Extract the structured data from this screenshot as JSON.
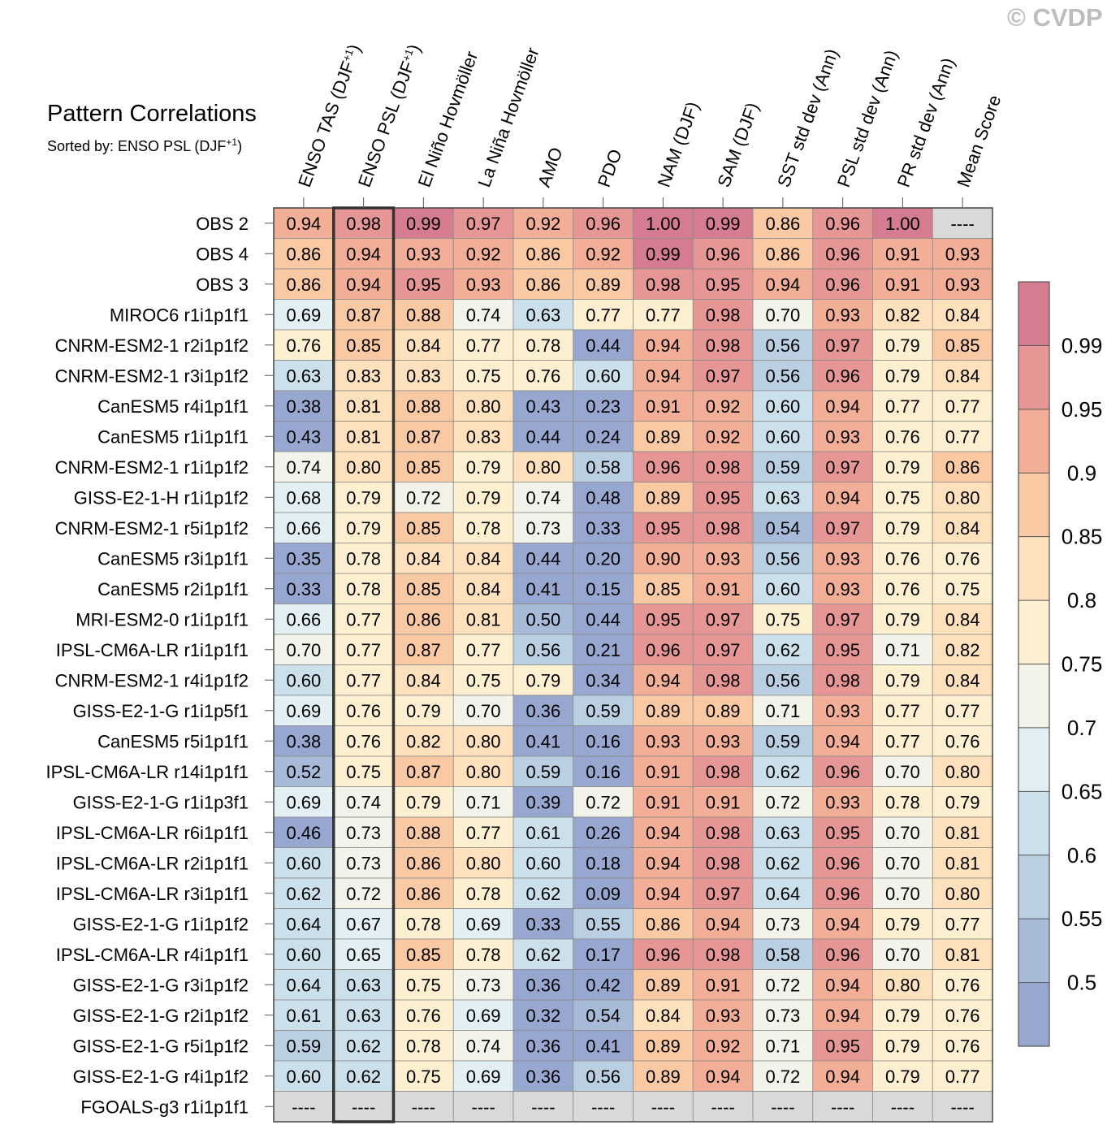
{
  "watermark": "© CVDP",
  "chart_data": {
    "type": "heatmap",
    "title": "Pattern Correlations",
    "subtitle_prefix": "Sorted by: ENSO PSL (DJF",
    "subtitle_sup": "+1",
    "subtitle_suffix": ")",
    "highlighted_column": 1,
    "missing_label": "----",
    "columns": [
      {
        "label": "ENSO TAS (DJF",
        "sup": "+1",
        "suffix": ")"
      },
      {
        "label": "ENSO PSL (DJF",
        "sup": "+1",
        "suffix": ")"
      },
      {
        "label": "El Niño Hovmöller"
      },
      {
        "label": "La Niña Hovmöller"
      },
      {
        "label": "AMO"
      },
      {
        "label": "PDO"
      },
      {
        "label": "NAM (DJF)"
      },
      {
        "label": "SAM (DJF)"
      },
      {
        "label": "SST std dev (Ann)"
      },
      {
        "label": "PSL std dev (Ann)"
      },
      {
        "label": "PR std dev (Ann)"
      },
      {
        "label": "Mean Score"
      }
    ],
    "rows": [
      {
        "name": "OBS 2",
        "values": [
          0.94,
          0.98,
          0.99,
          0.97,
          0.92,
          0.96,
          1.0,
          0.99,
          0.86,
          0.96,
          1.0,
          null
        ]
      },
      {
        "name": "OBS 4",
        "values": [
          0.86,
          0.94,
          0.93,
          0.92,
          0.86,
          0.92,
          0.99,
          0.96,
          0.86,
          0.96,
          0.91,
          0.93
        ]
      },
      {
        "name": "OBS 3",
        "values": [
          0.86,
          0.94,
          0.95,
          0.93,
          0.86,
          0.89,
          0.98,
          0.95,
          0.94,
          0.96,
          0.91,
          0.93
        ]
      },
      {
        "name": "MIROC6 r1i1p1f1",
        "values": [
          0.69,
          0.87,
          0.88,
          0.74,
          0.63,
          0.77,
          0.77,
          0.98,
          0.7,
          0.93,
          0.82,
          0.84
        ]
      },
      {
        "name": "CNRM-ESM2-1 r2i1p1f2",
        "values": [
          0.76,
          0.85,
          0.84,
          0.77,
          0.78,
          0.44,
          0.94,
          0.98,
          0.56,
          0.97,
          0.79,
          0.85
        ]
      },
      {
        "name": "CNRM-ESM2-1 r3i1p1f2",
        "values": [
          0.63,
          0.83,
          0.83,
          0.75,
          0.76,
          0.6,
          0.94,
          0.97,
          0.56,
          0.96,
          0.79,
          0.84
        ]
      },
      {
        "name": "CanESM5 r4i1p1f1",
        "values": [
          0.38,
          0.81,
          0.88,
          0.8,
          0.43,
          0.23,
          0.91,
          0.92,
          0.6,
          0.94,
          0.77,
          0.77
        ]
      },
      {
        "name": "CanESM5 r1i1p1f1",
        "values": [
          0.43,
          0.81,
          0.87,
          0.83,
          0.44,
          0.24,
          0.89,
          0.92,
          0.6,
          0.93,
          0.76,
          0.77
        ]
      },
      {
        "name": "CNRM-ESM2-1 r1i1p1f2",
        "values": [
          0.74,
          0.8,
          0.85,
          0.79,
          0.8,
          0.58,
          0.96,
          0.98,
          0.59,
          0.97,
          0.79,
          0.86
        ]
      },
      {
        "name": "GISS-E2-1-H r1i1p1f2",
        "values": [
          0.68,
          0.79,
          0.72,
          0.79,
          0.74,
          0.48,
          0.89,
          0.95,
          0.63,
          0.94,
          0.75,
          0.8
        ]
      },
      {
        "name": "CNRM-ESM2-1 r5i1p1f2",
        "values": [
          0.66,
          0.79,
          0.85,
          0.78,
          0.73,
          0.33,
          0.95,
          0.98,
          0.54,
          0.97,
          0.79,
          0.84
        ]
      },
      {
        "name": "CanESM5 r3i1p1f1",
        "values": [
          0.35,
          0.78,
          0.84,
          0.84,
          0.44,
          0.2,
          0.9,
          0.93,
          0.56,
          0.93,
          0.76,
          0.76
        ]
      },
      {
        "name": "CanESM5 r2i1p1f1",
        "values": [
          0.33,
          0.78,
          0.85,
          0.84,
          0.41,
          0.15,
          0.85,
          0.91,
          0.6,
          0.93,
          0.76,
          0.75
        ]
      },
      {
        "name": "MRI-ESM2-0 r1i1p1f1",
        "values": [
          0.66,
          0.77,
          0.86,
          0.81,
          0.5,
          0.44,
          0.95,
          0.97,
          0.75,
          0.97,
          0.79,
          0.84
        ]
      },
      {
        "name": "IPSL-CM6A-LR r1i1p1f1",
        "values": [
          0.7,
          0.77,
          0.87,
          0.77,
          0.56,
          0.21,
          0.96,
          0.97,
          0.62,
          0.95,
          0.71,
          0.82
        ]
      },
      {
        "name": "CNRM-ESM2-1 r4i1p1f2",
        "values": [
          0.6,
          0.77,
          0.84,
          0.75,
          0.79,
          0.34,
          0.94,
          0.98,
          0.56,
          0.98,
          0.79,
          0.84
        ]
      },
      {
        "name": "GISS-E2-1-G r1i1p5f1",
        "values": [
          0.69,
          0.76,
          0.79,
          0.7,
          0.36,
          0.59,
          0.89,
          0.89,
          0.71,
          0.93,
          0.77,
          0.77
        ]
      },
      {
        "name": "CanESM5 r5i1p1f1",
        "values": [
          0.38,
          0.76,
          0.82,
          0.8,
          0.41,
          0.16,
          0.93,
          0.93,
          0.59,
          0.94,
          0.77,
          0.76
        ]
      },
      {
        "name": "IPSL-CM6A-LR r14i1p1f1",
        "values": [
          0.52,
          0.75,
          0.87,
          0.8,
          0.59,
          0.16,
          0.91,
          0.98,
          0.62,
          0.96,
          0.7,
          0.8
        ]
      },
      {
        "name": "GISS-E2-1-G r1i1p3f1",
        "values": [
          0.69,
          0.74,
          0.79,
          0.71,
          0.39,
          0.72,
          0.91,
          0.91,
          0.72,
          0.93,
          0.78,
          0.79
        ]
      },
      {
        "name": "IPSL-CM6A-LR r6i1p1f1",
        "values": [
          0.46,
          0.73,
          0.88,
          0.77,
          0.61,
          0.26,
          0.94,
          0.98,
          0.63,
          0.95,
          0.7,
          0.81
        ]
      },
      {
        "name": "IPSL-CM6A-LR r2i1p1f1",
        "values": [
          0.6,
          0.73,
          0.86,
          0.8,
          0.6,
          0.18,
          0.94,
          0.98,
          0.62,
          0.96,
          0.7,
          0.81
        ]
      },
      {
        "name": "IPSL-CM6A-LR r3i1p1f1",
        "values": [
          0.62,
          0.72,
          0.86,
          0.78,
          0.62,
          0.09,
          0.94,
          0.97,
          0.64,
          0.96,
          0.7,
          0.8
        ]
      },
      {
        "name": "GISS-E2-1-G r1i1p1f2",
        "values": [
          0.64,
          0.67,
          0.78,
          0.69,
          0.33,
          0.55,
          0.86,
          0.94,
          0.73,
          0.94,
          0.79,
          0.77
        ]
      },
      {
        "name": "IPSL-CM6A-LR r4i1p1f1",
        "values": [
          0.6,
          0.65,
          0.85,
          0.78,
          0.62,
          0.17,
          0.96,
          0.98,
          0.58,
          0.96,
          0.7,
          0.81
        ]
      },
      {
        "name": "GISS-E2-1-G r3i1p1f2",
        "values": [
          0.64,
          0.63,
          0.75,
          0.73,
          0.36,
          0.42,
          0.89,
          0.91,
          0.72,
          0.94,
          0.8,
          0.76
        ]
      },
      {
        "name": "GISS-E2-1-G r2i1p1f2",
        "values": [
          0.61,
          0.63,
          0.76,
          0.69,
          0.32,
          0.54,
          0.84,
          0.93,
          0.73,
          0.94,
          0.79,
          0.76
        ]
      },
      {
        "name": "GISS-E2-1-G r5i1p1f2",
        "values": [
          0.59,
          0.62,
          0.78,
          0.74,
          0.36,
          0.41,
          0.89,
          0.92,
          0.71,
          0.95,
          0.79,
          0.76
        ]
      },
      {
        "name": "GISS-E2-1-G r4i1p1f2",
        "values": [
          0.6,
          0.62,
          0.75,
          0.69,
          0.36,
          0.56,
          0.89,
          0.94,
          0.72,
          0.94,
          0.79,
          0.77
        ]
      },
      {
        "name": "FGOALS-g3 r1i1p1f1",
        "values": [
          null,
          null,
          null,
          null,
          null,
          null,
          null,
          null,
          null,
          null,
          null,
          null
        ]
      }
    ],
    "colorbar": {
      "levels": [
        0.5,
        0.55,
        0.6,
        0.65,
        0.7,
        0.75,
        0.8,
        0.85,
        0.9,
        0.95,
        0.99
      ],
      "labels": [
        "0.5",
        "0.55",
        "0.6",
        "0.65",
        "0.7",
        "0.75",
        "0.8",
        "0.85",
        "0.9",
        "0.95",
        "0.99"
      ],
      "colors": [
        "#97a7cf",
        "#a7bad8",
        "#bad0e2",
        "#cce0ec",
        "#e2eff3",
        "#f3f3ea",
        "#fdf0d0",
        "#fde0bc",
        "#f9c9a4",
        "#f2ae96",
        "#e79696",
        "#d57c90"
      ]
    }
  }
}
